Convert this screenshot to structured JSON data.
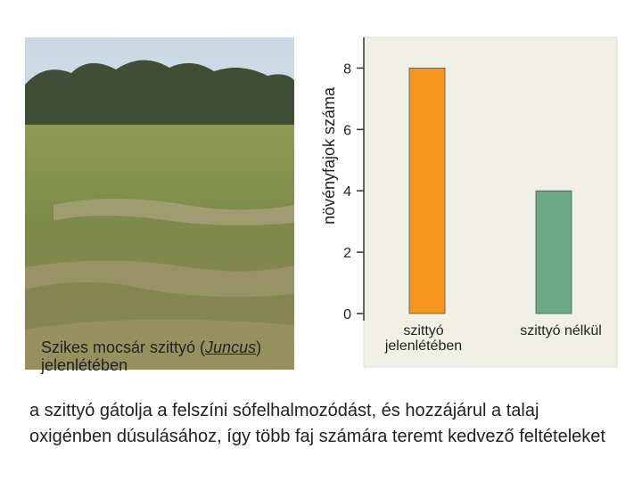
{
  "chart_data": {
    "type": "bar",
    "ylabel": "növényfajok száma",
    "categories": [
      "szittyó jelenlétében",
      "szittyó nélkül"
    ],
    "values": [
      8,
      4
    ],
    "colors": [
      "#f7941d",
      "#6aaa84"
    ],
    "ylim": [
      0,
      9
    ],
    "yticks": [
      0,
      2,
      4,
      6,
      8
    ]
  },
  "photo": {
    "caption_start": "Szikes mocsár szittyó (",
    "caption_species": "Juncus",
    "caption_end": ") jelenlétében"
  },
  "text": "a szittyó gátolja a felszíni sófelhalmozódást, és hozzájárul a talaj oxigénben dúsulásához, így több faj számára teremt kedvező feltételeket"
}
